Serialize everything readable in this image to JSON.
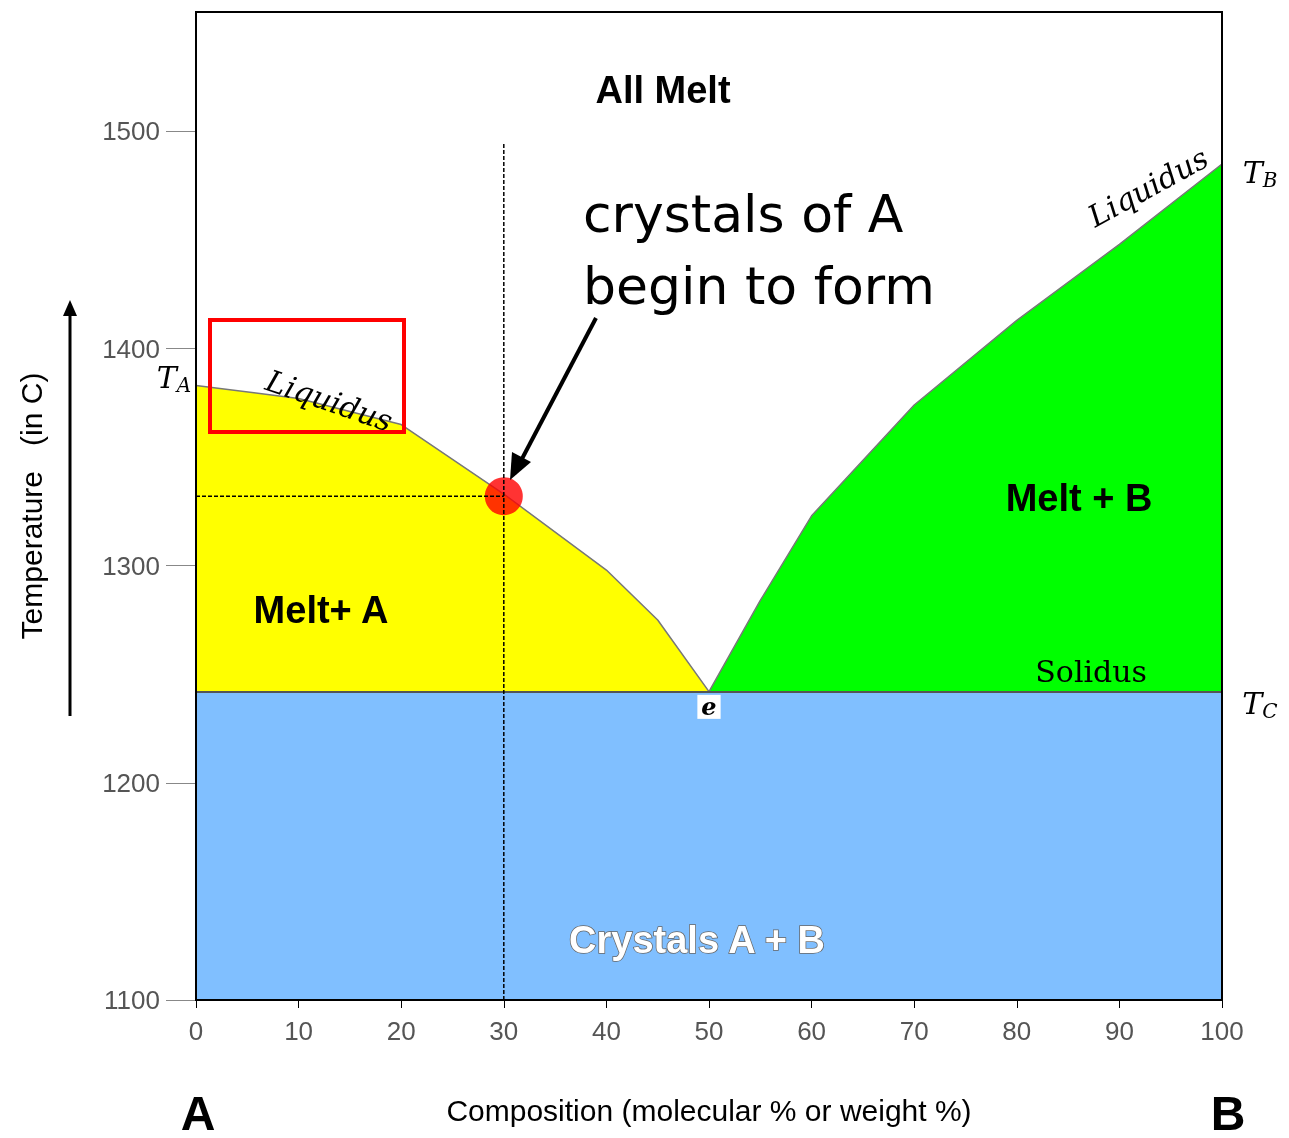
{
  "chart_data": {
    "type": "area",
    "xlabel": "Composition (molecular % or weight %)",
    "ylabel": "Temperature   (in C)",
    "xlim": [
      0,
      100
    ],
    "xticks": [
      0,
      10,
      20,
      30,
      40,
      50,
      60,
      70,
      80,
      90,
      100
    ],
    "ylim": [
      1100,
      1555
    ],
    "yticks": [
      1100,
      1200,
      1300,
      1400,
      1500
    ],
    "grid": false,
    "marker": "none",
    "series": [
      {
        "color": "#ffff00",
        "x": [
          0,
          10,
          20,
          30,
          40,
          45,
          50
        ],
        "values": [
          1383,
          1377,
          1365,
          1333,
          1298,
          1275,
          1242
        ]
      },
      {
        "color": "#00ff00",
        "x": [
          50,
          55,
          60,
          70,
          80,
          90,
          100
        ],
        "values": [
          1242,
          1284,
          1323,
          1374,
          1413,
          1448,
          1485
        ]
      },
      {
        "type": "line",
        "color": "#000000",
        "line_style": "dashed",
        "x": [
          30,
          30
        ],
        "values": [
          1100,
          1495
        ]
      },
      {
        "type": "line",
        "color": "#000000",
        "line_style": "dashed",
        "x": [
          0,
          30
        ],
        "values": [
          1332,
          1332
        ]
      },
      {
        "type": "scatter",
        "color": "#ff0000",
        "marker": "circle",
        "x": [
          30
        ],
        "values": [
          1332
        ]
      }
    ],
    "bands": [
      {
        "axis": "y",
        "from": 1100,
        "to": 1242,
        "color": "#80bfff"
      }
    ],
    "ref_lines": [
      {
        "axis": "y",
        "value": 1242,
        "label": "Solidus",
        "color": "#555555"
      }
    ],
    "annotations": [
      "All Melt",
      "Melt+ A",
      "Melt + B",
      "Crystals A + B",
      {
        "text": "Liquidus",
        "x": 13,
        "y": 1376
      },
      "Liquidus",
      {
        "text": "e",
        "x": 50,
        "y": 1235
      },
      {
        "text": "T$_{A}$",
        "x": 0,
        "y": 1383
      },
      {
        "text": "T$_{B}$",
        "x": 100,
        "y": 1485
      },
      {
        "text": "T$_{C}$",
        "x": 100,
        "y": 1242
      },
      "crystals of A\nbegin to form",
      "A",
      "B"
    ]
  }
}
